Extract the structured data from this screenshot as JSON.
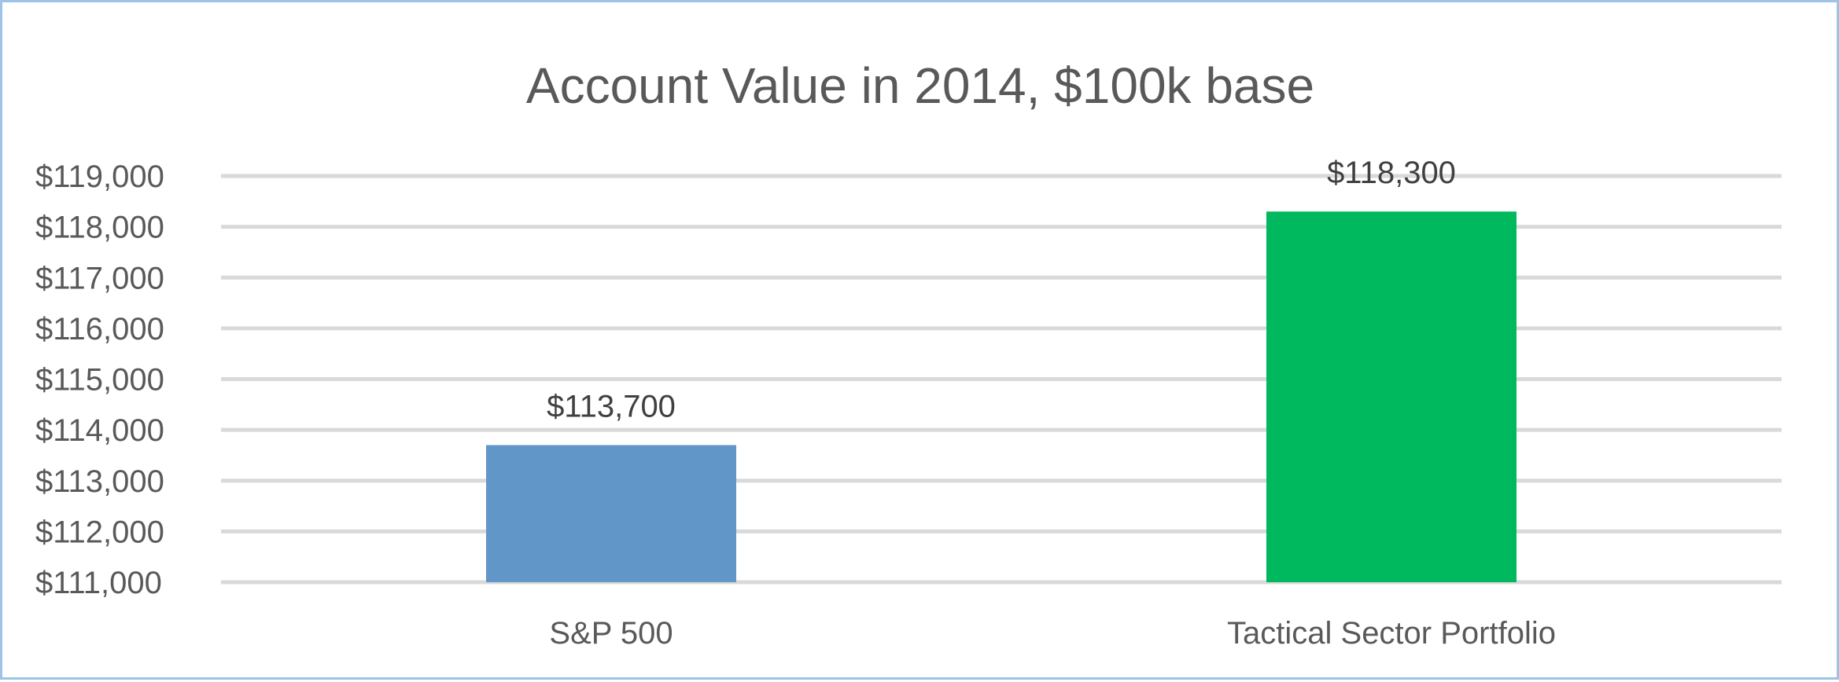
{
  "chart_data": {
    "type": "bar",
    "title": "Account Value in 2014, $100k base",
    "xlabel": "",
    "ylabel": "",
    "categories": [
      "S&P 500",
      "Tactical Sector Portfolio"
    ],
    "values": [
      113700,
      118300
    ],
    "data_labels": [
      "$113,700",
      "$118,300"
    ],
    "bar_colors": [
      "#6096c8",
      "#00b95e"
    ],
    "ylim": [
      111000,
      119000
    ],
    "y_ticks": [
      111000,
      112000,
      113000,
      114000,
      115000,
      116000,
      117000,
      118000,
      119000
    ],
    "y_tick_labels": [
      "$111,000",
      "$112,000",
      "$113,000",
      "$114,000",
      "$115,000",
      "$116,000",
      "$117,000",
      "$118,000",
      "$119,000"
    ],
    "grid": true,
    "legend": "none"
  }
}
